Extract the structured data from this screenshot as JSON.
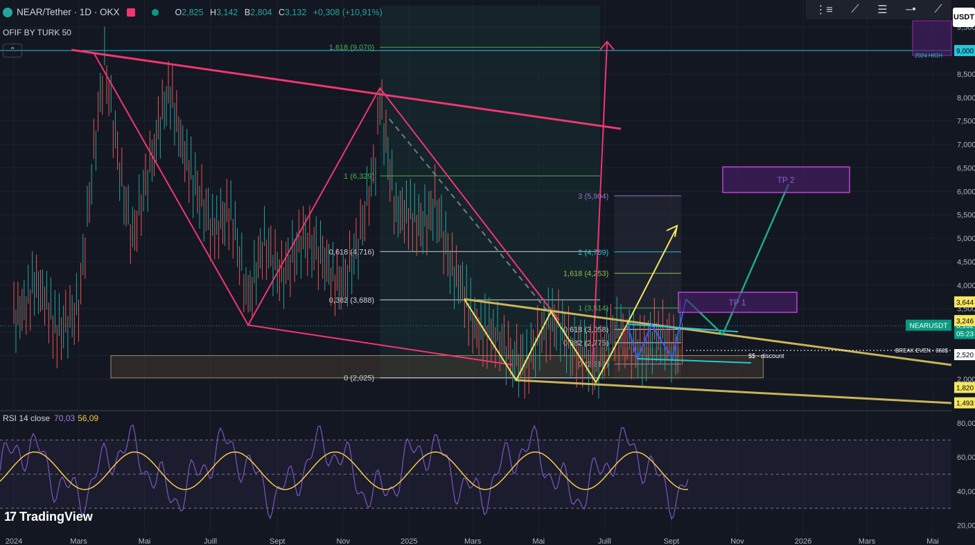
{
  "header": {
    "title": "NEAR/Tether · 1D · OKX",
    "ohlc": [
      {
        "k": "O",
        "v": "2,825"
      },
      {
        "k": "H",
        "v": "3,142"
      },
      {
        "k": "B",
        "v": "2,804"
      },
      {
        "k": "C",
        "v": "3,132"
      }
    ],
    "change": "+0,308 (+10,91%)",
    "indicator": "OFIF BY TURK 50",
    "collapse_icon": "chevron-up"
  },
  "toolbar": {
    "icons": [
      "layout-icon",
      "trend-line-icon",
      "lines-icon",
      "horizontal-ray-icon",
      "pencil-icon"
    ]
  },
  "currency_badge": "USDT",
  "brand": "TradingView",
  "chart_data": [
    {
      "type": "line",
      "title": "NEAR/Tether · 1D · OKX",
      "x_tick_labels": [
        "2024",
        "Mars",
        "Mai",
        "Juill",
        "Sept",
        "Nov",
        "2025",
        "Mars",
        "Mai",
        "Juill",
        "Sept",
        "Nov",
        "2026",
        "Mars",
        "Mai"
      ],
      "x_tick_dates": [
        "2024-01-01",
        "2024-03-01",
        "2024-05-01",
        "2024-07-01",
        "2024-09-01",
        "2024-11-01",
        "2025-01-01",
        "2025-03-01",
        "2025-05-01",
        "2025-07-01",
        "2025-09-01",
        "2025-11-01",
        "2026-01-01",
        "2026-03-01",
        "2026-05-01"
      ],
      "y_tick_labels": [
        "2,000",
        "2,500",
        "3,000",
        "3,500",
        "4,000",
        "4,500",
        "5,000",
        "5,500",
        "6,000",
        "6,500",
        "7,000",
        "7,500",
        "8,000",
        "8,500",
        "9,000",
        "9,500"
      ],
      "ylim": [
        1.4,
        9.9
      ],
      "price_path": [
        [
          "2024-01-01",
          3.2
        ],
        [
          "2024-01-20",
          4.1
        ],
        [
          "2024-02-10",
          3.0
        ],
        [
          "2024-03-01",
          3.6
        ],
        [
          "2024-03-15",
          6.9
        ],
        [
          "2024-03-25",
          8.9
        ],
        [
          "2024-04-10",
          6.3
        ],
        [
          "2024-04-20",
          5.1
        ],
        [
          "2024-05-10",
          7.0
        ],
        [
          "2024-05-25",
          8.1
        ],
        [
          "2024-06-15",
          6.2
        ],
        [
          "2024-07-05",
          5.0
        ],
        [
          "2024-07-20",
          5.7
        ],
        [
          "2024-08-05",
          3.8
        ],
        [
          "2024-08-20",
          4.8
        ],
        [
          "2024-09-05",
          4.1
        ],
        [
          "2024-09-25",
          5.0
        ],
        [
          "2024-10-15",
          4.6
        ],
        [
          "2024-11-01",
          3.9
        ],
        [
          "2024-11-15",
          4.8
        ],
        [
          "2024-12-01",
          6.5
        ],
        [
          "2024-12-05",
          7.8
        ],
        [
          "2024-12-20",
          5.7
        ],
        [
          "2025-01-10",
          5.2
        ],
        [
          "2025-01-25",
          5.8
        ],
        [
          "2025-02-10",
          4.3
        ],
        [
          "2025-03-01",
          3.3
        ],
        [
          "2025-03-20",
          2.9
        ],
        [
          "2025-04-07",
          2.3
        ],
        [
          "2025-04-20",
          2.5
        ],
        [
          "2025-05-10",
          3.3
        ],
        [
          "2025-05-25",
          2.9
        ],
        [
          "2025-06-20",
          2.3
        ],
        [
          "2025-07-05",
          2.8
        ],
        [
          "2025-07-20",
          3.0
        ],
        [
          "2025-08-05",
          2.7
        ],
        [
          "2025-08-20",
          2.9
        ],
        [
          "2025-09-05",
          2.5
        ],
        [
          "2025-09-13",
          3.13
        ]
      ],
      "current_price": {
        "label": "NEARUSDT",
        "value": "3,132",
        "countdown": "05:23"
      },
      "price_tags": [
        "3,644",
        "3,246",
        "2,520",
        "1,820",
        "1,493",
        "9,000"
      ],
      "fib_retracement": [
        {
          "label": "1,618 (9,070)",
          "value": 9.07
        },
        {
          "label": "1 (6,329)",
          "value": 6.329
        },
        {
          "label": "0,618 (4,716)",
          "value": 4.716
        },
        {
          "label": "0,382 (3,688)",
          "value": 3.688
        },
        {
          "label": "0 (2,025)",
          "value": 2.025
        }
      ],
      "fib_extension": [
        {
          "label": "3 (5,904)",
          "value": 5.904
        },
        {
          "label": "2 (4,709)",
          "value": 4.709
        },
        {
          "label": "1,618 (4,253)",
          "value": 4.253
        },
        {
          "label": "1 (3,514)",
          "value": 3.514
        },
        {
          "label": "0,618 (3,058)",
          "value": 3.058
        },
        {
          "label": "0,382 (2,775)",
          "value": 2.775
        },
        {
          "label": "0 (2,319)",
          "value": 2.319
        }
      ],
      "annotations": [
        "2024 HIGH",
        "TP 2",
        "TP 1",
        "BREAK EVEN - 360$",
        "$$ - discount"
      ],
      "grid": true
    },
    {
      "type": "line",
      "title": "RSI 14 close",
      "values": [
        "70,03",
        "56,09"
      ],
      "colors": {
        "rsi": "#7e57c2",
        "ma": "#f7c948"
      },
      "y_tick_labels": [
        "20,00",
        "40,00",
        "60,00",
        "80,00"
      ],
      "ylim": [
        17,
        86
      ],
      "bands": [
        70,
        50,
        30
      ]
    }
  ]
}
